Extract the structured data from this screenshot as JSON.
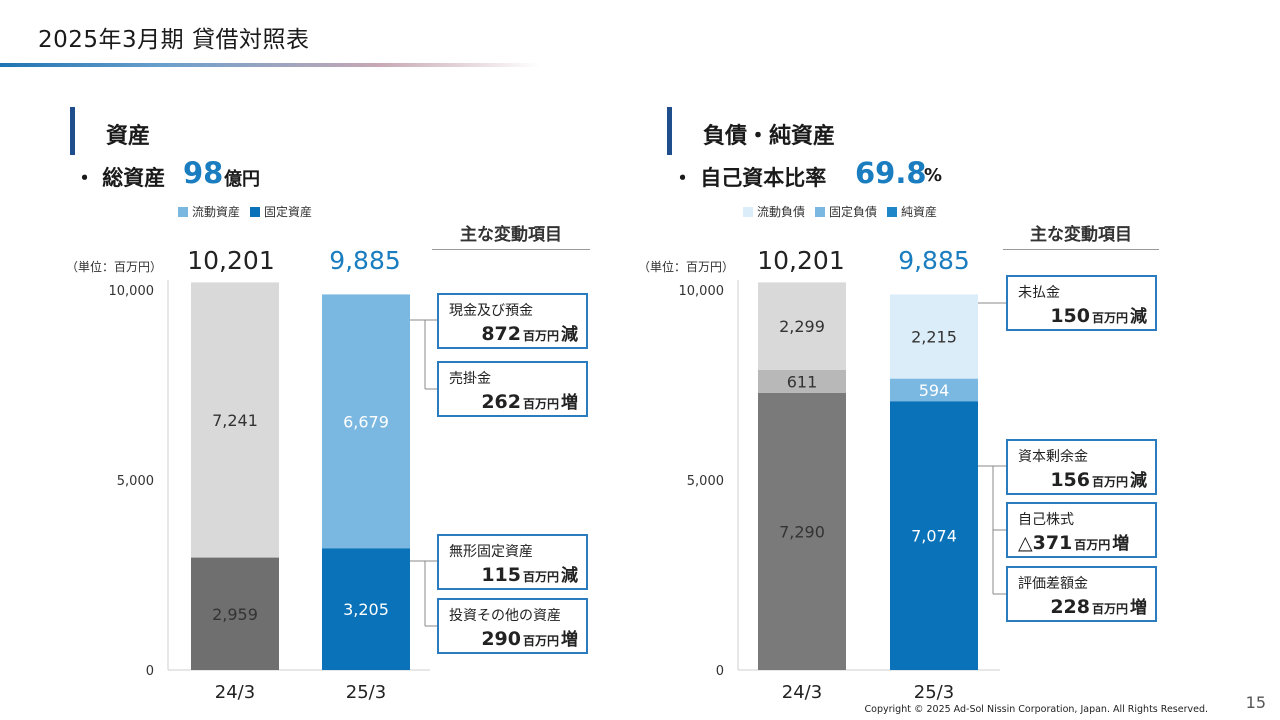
{
  "page": {
    "title": "2025年3月期 貸借対照表",
    "copyright": "Copyright © 2025 Ad-Sol Nissin Corporation, Japan. All Rights Reserved.",
    "page_number": "15"
  },
  "left": {
    "section_title": "資産",
    "kpi_label": "・ 総資産",
    "kpi_value": "98",
    "kpi_unit": "億円",
    "side_title": "主な変動項目",
    "unit_label": "（単位：百万円）",
    "callouts": [
      {
        "name": "現金及び預金",
        "value": "872",
        "unit": "百万円",
        "direction": "減"
      },
      {
        "name": "売掛金",
        "value": "262",
        "unit": "百万円",
        "direction": "増"
      },
      {
        "name": "無形固定資産",
        "value": "115",
        "unit": "百万円",
        "direction": "減"
      },
      {
        "name": "投資その他の資産",
        "value": "290",
        "unit": "百万円",
        "direction": "増"
      }
    ]
  },
  "right": {
    "section_title": "負債・純資産",
    "kpi_label": "・ 自己資本比率",
    "kpi_value": "69.8",
    "kpi_unit": "%",
    "side_title": "主な変動項目",
    "unit_label": "（単位：百万円）",
    "callouts": [
      {
        "name": "未払金",
        "value": "150",
        "unit": "百万円",
        "direction": "減"
      },
      {
        "name": "資本剰余金",
        "value": "156",
        "unit": "百万円",
        "direction": "減"
      },
      {
        "name": "自己株式",
        "value": "△371",
        "unit": "百万円",
        "direction": "増"
      },
      {
        "name": "評価差額金",
        "value": "228",
        "unit": "百万円",
        "direction": "増"
      }
    ]
  },
  "colors": {
    "accent": "#1a7dc0",
    "callout_border": "#2a7cbe",
    "section_bar": "#1f4e8c"
  },
  "chart_data": [
    {
      "type": "bar",
      "stacked": true,
      "categories": [
        "24/3",
        "25/3"
      ],
      "totals": [
        "10,201",
        "9,885"
      ],
      "ylim": [
        0,
        10000
      ],
      "yticks": [
        0,
        5000,
        10000
      ],
      "ytick_labels": [
        "0",
        "5,000",
        "10,000"
      ],
      "legend_placement": "top",
      "series": [
        {
          "name": "固定資産",
          "values": [
            2959,
            3205
          ],
          "labels": [
            "2,959",
            "3,205"
          ],
          "colors": [
            "#6f6f6f",
            "#0a72b8"
          ],
          "text_color": "#ffffff",
          "legend_color": "#0a72b8"
        },
        {
          "name": "流動資産",
          "values": [
            7241,
            6679
          ],
          "labels": [
            "7,241",
            "6,679"
          ],
          "colors": [
            "#d9d9d9",
            "#7ab8e2"
          ],
          "text_color": "#333333",
          "legend_color": "#7ab8e2"
        }
      ],
      "label_text_colors": [
        [
          "#333333",
          "#ffffff"
        ],
        [
          "#333333",
          "#ffffff"
        ]
      ],
      "legend_order": [
        1,
        0
      ]
    },
    {
      "type": "bar",
      "stacked": true,
      "categories": [
        "24/3",
        "25/3"
      ],
      "totals": [
        "10,201",
        "9,885"
      ],
      "ylim": [
        0,
        10000
      ],
      "yticks": [
        0,
        5000,
        10000
      ],
      "ytick_labels": [
        "0",
        "5,000",
        "10,000"
      ],
      "legend_placement": "top",
      "series": [
        {
          "name": "純資産",
          "values": [
            7290,
            7074
          ],
          "labels": [
            "7,290",
            "7,074"
          ],
          "colors": [
            "#7a7a7a",
            "#0a72b8"
          ],
          "legend_color": "#1f87c8"
        },
        {
          "name": "固定負債",
          "values": [
            611,
            594
          ],
          "labels": [
            "611",
            "594"
          ],
          "colors": [
            "#b8b8b8",
            "#7ab8e2"
          ],
          "legend_color": "#7ab8e2"
        },
        {
          "name": "流動負債",
          "values": [
            2299,
            2215
          ],
          "labels": [
            "2,299",
            "2,215"
          ],
          "colors": [
            "#d9d9d9",
            "#dcedfa"
          ],
          "legend_color": "#dcedfa"
        }
      ],
      "label_text_colors": [
        [
          "#333333",
          "#ffffff"
        ],
        [
          "#333333",
          "#ffffff"
        ],
        [
          "#333333",
          "#333333"
        ]
      ],
      "legend_order": [
        2,
        1,
        0
      ]
    }
  ]
}
